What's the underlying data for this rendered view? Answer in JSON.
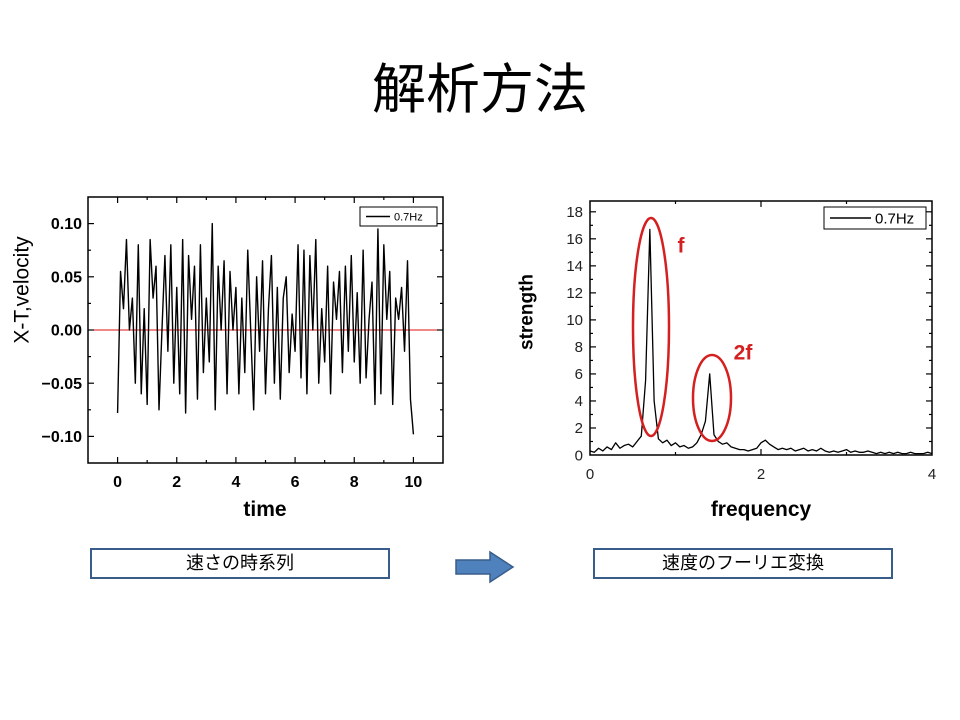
{
  "slide": {
    "title": "解析方法",
    "captions": [
      "速さの時系列",
      "速度のフーリエ変換"
    ]
  },
  "colors": {
    "caption_border": "#385d8a",
    "arrow_fill": "#4f81bd",
    "arrow_stroke": "#385d8a"
  },
  "icons": {
    "transition_arrow": "right-arrow-icon"
  },
  "chart_data": [
    {
      "type": "line",
      "xlabel": "time",
      "ylabel": "X-T,velocity",
      "xlim": [
        -1,
        11
      ],
      "ylim": [
        -0.125,
        0.125
      ],
      "xticks": [
        0,
        2,
        4,
        6,
        8,
        10
      ],
      "xtick_labels": [
        "0",
        "2",
        "4",
        "6",
        "8",
        "10"
      ],
      "yticks": [
        -0.1,
        -0.05,
        0,
        0.05,
        0.1
      ],
      "ytick_labels": [
        "−0.10",
        "−0.05",
        "0.00",
        "0.05",
        "0.10"
      ],
      "grid": false,
      "legend": "top-right",
      "reference_line": {
        "y": 0,
        "color": "#e01010"
      },
      "x": [
        0,
        0.1,
        0.2,
        0.3,
        0.4,
        0.5,
        0.6,
        0.7,
        0.8,
        0.9,
        1,
        1.1,
        1.2,
        1.3,
        1.4,
        1.5,
        1.6,
        1.7,
        1.8,
        1.9,
        2,
        2.1,
        2.2,
        2.3,
        2.4,
        2.5,
        2.6,
        2.7,
        2.8,
        2.9,
        3,
        3.1,
        3.2,
        3.3,
        3.4,
        3.5,
        3.6,
        3.7,
        3.8,
        3.9,
        4,
        4.1,
        4.2,
        4.3,
        4.4,
        4.5,
        4.6,
        4.7,
        4.8,
        4.9,
        5,
        5.1,
        5.2,
        5.3,
        5.4,
        5.5,
        5.6,
        5.7,
        5.8,
        5.9,
        6,
        6.1,
        6.2,
        6.3,
        6.4,
        6.5,
        6.6,
        6.7,
        6.8,
        6.9,
        7,
        7.1,
        7.2,
        7.3,
        7.4,
        7.5,
        7.6,
        7.7,
        7.8,
        7.9,
        8,
        8.1,
        8.2,
        8.3,
        8.4,
        8.5,
        8.6,
        8.7,
        8.8,
        8.9,
        9,
        9.1,
        9.2,
        9.3,
        9.4,
        9.5,
        9.6,
        9.7,
        9.8,
        9.9,
        10
      ],
      "series": [
        {
          "name": "0.7Hz",
          "color": "#000000",
          "values": [
            -0.078,
            0.055,
            0.02,
            0.085,
            0,
            0.03,
            -0.05,
            0.08,
            -0.06,
            0.02,
            -0.07,
            0.085,
            0.03,
            0.06,
            -0.075,
            0,
            0.07,
            -0.02,
            0.08,
            -0.05,
            0.04,
            -0.06,
            0.085,
            -0.078,
            0.07,
            0.01,
            0.06,
            -0.065,
            0.08,
            -0.04,
            0.03,
            -0.03,
            0.1,
            -0.075,
            0.06,
            0,
            0.065,
            -0.06,
            0.055,
            0,
            0.04,
            -0.06,
            0.03,
            -0.04,
            0.075,
            0,
            -0.075,
            0.05,
            -0.02,
            0.065,
            -0.06,
            0.02,
            0.07,
            -0.05,
            0.04,
            -0.065,
            0.03,
            0.05,
            -0.04,
            0.015,
            -0.02,
            0.08,
            -0.045,
            0.075,
            -0.06,
            0.07,
            0,
            0.085,
            -0.05,
            0.02,
            -0.03,
            0.06,
            -0.06,
            0.045,
            0.01,
            0.055,
            -0.04,
            0.06,
            -0.02,
            0.07,
            -0.03,
            0.035,
            -0.05,
            0.075,
            -0.045,
            0.01,
            0.045,
            -0.07,
            0.095,
            -0.06,
            0.08,
            0.01,
            0.055,
            -0.07,
            0.03,
            0.01,
            0.04,
            -0.02,
            0.065,
            -0.065,
            -0.098
          ]
        }
      ]
    },
    {
      "type": "line",
      "xlabel": "frequency",
      "ylabel": "strength",
      "xlim": [
        0,
        4
      ],
      "ylim": [
        0,
        18.8
      ],
      "xticks": [
        0,
        2,
        4
      ],
      "xtick_labels": [
        "0",
        "2",
        "4"
      ],
      "yticks": [
        0,
        2,
        4,
        6,
        8,
        10,
        12,
        14,
        16,
        18
      ],
      "ytick_labels": [
        "0",
        "2",
        "4",
        "6",
        "8",
        "10",
        "12",
        "14",
        "16",
        "18"
      ],
      "grid": false,
      "legend": "top-right",
      "x": [
        0,
        0.05,
        0.1,
        0.15,
        0.2,
        0.25,
        0.3,
        0.35,
        0.4,
        0.45,
        0.5,
        0.55,
        0.6,
        0.65,
        0.7,
        0.75,
        0.8,
        0.85,
        0.9,
        0.95,
        1,
        1.05,
        1.1,
        1.15,
        1.2,
        1.25,
        1.3,
        1.35,
        1.4,
        1.45,
        1.5,
        1.55,
        1.6,
        1.65,
        1.7,
        1.75,
        1.8,
        1.85,
        1.9,
        1.95,
        2,
        2.05,
        2.1,
        2.15,
        2.2,
        2.25,
        2.3,
        2.35,
        2.4,
        2.45,
        2.5,
        2.55,
        2.6,
        2.65,
        2.7,
        2.75,
        2.8,
        2.85,
        2.9,
        2.95,
        3,
        3.05,
        3.1,
        3.15,
        3.2,
        3.25,
        3.3,
        3.35,
        3.4,
        3.45,
        3.5,
        3.55,
        3.6,
        3.65,
        3.7,
        3.75,
        3.8,
        3.85,
        3.9,
        3.95,
        4
      ],
      "series": [
        {
          "name": "0.7Hz",
          "color": "#000000",
          "values": [
            0.3,
            0.2,
            0.5,
            0.3,
            0.6,
            0.4,
            0.9,
            0.5,
            0.7,
            0.8,
            0.6,
            1.0,
            1.4,
            5.5,
            16.7,
            4.0,
            1.2,
            0.9,
            1.1,
            0.7,
            0.9,
            0.6,
            0.7,
            0.5,
            0.6,
            0.9,
            1.5,
            2.5,
            6.0,
            1.5,
            1.0,
            0.8,
            0.9,
            0.6,
            0.5,
            0.4,
            0.4,
            0.3,
            0.4,
            0.5,
            0.9,
            1.1,
            0.8,
            0.6,
            0.4,
            0.5,
            0.4,
            0.5,
            0.3,
            0.4,
            0.5,
            0.3,
            0.4,
            0.3,
            0.5,
            0.3,
            0.2,
            0.3,
            0.2,
            0.3,
            0.4,
            0.2,
            0.3,
            0.2,
            0.2,
            0.3,
            0.2,
            0.1,
            0.2,
            0.1,
            0.2,
            0.1,
            0.2,
            0.1,
            0.1,
            0.2,
            0.1,
            0.1,
            0.1,
            0.2,
            0.1
          ]
        }
      ],
      "annotations": [
        {
          "text": "f",
          "color": "#d42020"
        },
        {
          "text": "2f",
          "color": "#d42020"
        }
      ]
    }
  ]
}
